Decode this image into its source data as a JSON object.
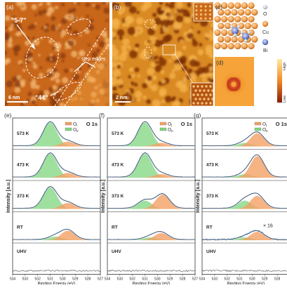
{
  "panel_letters": [
    "(a)",
    "(b)",
    "(c)",
    "(d)",
    "(e)",
    "(f)",
    "(g)"
  ],
  "stm_a": {
    "label_57": "\"5-7\"",
    "label_44": "\"44\"",
    "label_steps": "step edges",
    "scalebar": "6 nm"
  },
  "stm_b": {
    "scalebar": "2 nm"
  },
  "model_c": {
    "legend": [
      {
        "label": "O",
        "color": "#bfc8d6"
      },
      {
        "label": "Cu",
        "color": "#f0a050"
      },
      {
        "label": "Bi",
        "color": "#7b8fd6"
      }
    ]
  },
  "sim_d": {
    "cbar_high": "High",
    "cbar_low": "Low"
  },
  "xps": {
    "title": "O 1s",
    "legend": [
      "O",
      "O"
    ],
    "legend_subscripts": [
      "I",
      "II"
    ],
    "ylabel": "Intensity [a.u.]",
    "xlabel": "Binding Energy (eV)",
    "xticks": [
      "534",
      "533",
      "532",
      "531",
      "530",
      "529",
      "528",
      "527"
    ],
    "rows": [
      "573 K",
      "473 K",
      "373 K",
      "RT",
      "UHV"
    ],
    "g_annotation": "× 16",
    "colors": {
      "OI": "#f4a064",
      "OII": "#7fd67f",
      "fit": "#4a7fc0",
      "data": "#555555"
    }
  },
  "chart_data": [
    {
      "type": "line",
      "panel": "(e)",
      "title": "O 1s",
      "xlabel": "Binding Energy (eV)",
      "ylabel": "Intensity [a.u.]",
      "xlim": [
        534,
        527
      ],
      "series": [
        {
          "name": "573 K",
          "OII_peak_eV": 531.0,
          "OII_rel": 1.0,
          "OI_peak_eV": 529.6,
          "OI_rel": 0.2
        },
        {
          "name": "473 K",
          "OII_peak_eV": 531.0,
          "OII_rel": 1.0,
          "OI_peak_eV": 529.6,
          "OI_rel": 0.2
        },
        {
          "name": "373 K",
          "OII_peak_eV": 531.0,
          "OII_rel": 0.9,
          "OI_peak_eV": 529.6,
          "OI_rel": 0.25
        },
        {
          "name": "RT",
          "OII_peak_eV": 530.6,
          "OII_rel": 0.15,
          "OI_peak_eV": 529.6,
          "OI_rel": 0.4
        },
        {
          "name": "UHV",
          "OII_peak_eV": 0,
          "OII_rel": 0,
          "OI_peak_eV": 0,
          "OI_rel": 0
        }
      ]
    },
    {
      "type": "line",
      "panel": "(f)",
      "title": "O 1s",
      "xlabel": "Binding Energy (eV)",
      "ylabel": "",
      "xlim": [
        534,
        527
      ],
      "series": [
        {
          "name": "573 K",
          "OII_peak_eV": 531.0,
          "OII_rel": 1.0,
          "OI_peak_eV": 529.7,
          "OI_rel": 0.15
        },
        {
          "name": "473 K",
          "OII_peak_eV": 531.0,
          "OII_rel": 1.0,
          "OI_peak_eV": 529.7,
          "OI_rel": 0.15
        },
        {
          "name": "373 K",
          "OII_peak_eV": 531.0,
          "OII_rel": 0.35,
          "OI_peak_eV": 529.6,
          "OI_rel": 0.6
        },
        {
          "name": "RT",
          "OII_peak_eV": 530.6,
          "OII_rel": 0.12,
          "OI_peak_eV": 529.7,
          "OI_rel": 0.3
        },
        {
          "name": "UHV",
          "OII_peak_eV": 0,
          "OII_rel": 0,
          "OI_peak_eV": 0,
          "OI_rel": 0
        }
      ]
    },
    {
      "type": "line",
      "panel": "(g)",
      "title": "O 1s",
      "xlabel": "Binding Energy (eV)",
      "ylabel": "",
      "xlim": [
        534,
        527
      ],
      "series": [
        {
          "name": "573 K",
          "OII_peak_eV": 530.6,
          "OII_rel": 0.15,
          "OI_peak_eV": 529.6,
          "OI_rel": 0.55
        },
        {
          "name": "473 K",
          "OII_peak_eV": 530.6,
          "OII_rel": 0.15,
          "OI_peak_eV": 529.6,
          "OI_rel": 0.9
        },
        {
          "name": "373 K",
          "OII_peak_eV": 530.6,
          "OII_rel": 0.35,
          "OI_peak_eV": 529.6,
          "OI_rel": 0.55
        },
        {
          "name": "RT",
          "OII_peak_eV": 530.6,
          "OII_rel": 0.12,
          "OI_peak_eV": 529.6,
          "OI_rel": 0.35
        },
        {
          "name": "UHV",
          "OII_peak_eV": 0,
          "OII_rel": 0,
          "OI_peak_eV": 0,
          "OI_rel": 0
        }
      ]
    }
  ]
}
